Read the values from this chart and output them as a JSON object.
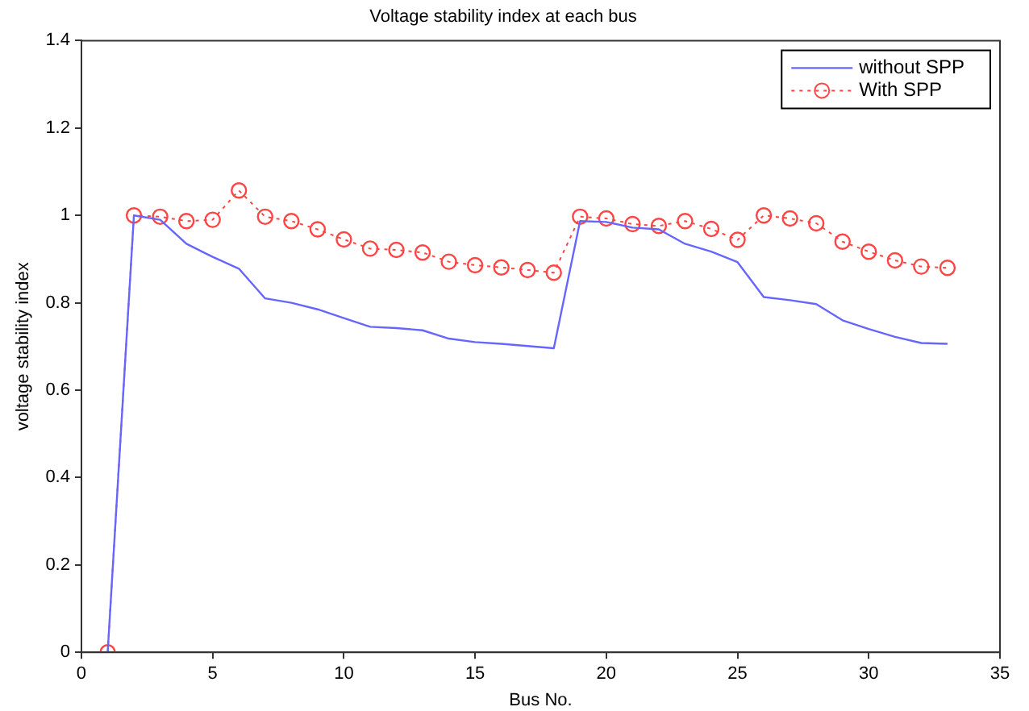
{
  "chart_data": {
    "type": "line",
    "title": "Voltage stability index at each bus",
    "xlabel": "Bus No.",
    "ylabel": "voltage stability index",
    "x": [
      1,
      2,
      3,
      4,
      5,
      6,
      7,
      8,
      9,
      10,
      11,
      12,
      13,
      14,
      15,
      16,
      17,
      18,
      19,
      20,
      21,
      22,
      23,
      24,
      25,
      26,
      27,
      28,
      29,
      30,
      31,
      32,
      33
    ],
    "series": [
      {
        "name": "without SPP",
        "color": "#6666ff",
        "marker": "none",
        "line_style": "solid",
        "values": [
          0,
          1.0,
          0.99,
          0.935,
          0.905,
          0.878,
          0.81,
          0.8,
          0.785,
          0.765,
          0.745,
          0.742,
          0.737,
          0.718,
          0.71,
          0.706,
          0.701,
          0.696,
          0.987,
          0.985,
          0.972,
          0.968,
          0.935,
          0.917,
          0.893,
          0.813,
          0.806,
          0.797,
          0.76,
          0.74,
          0.722,
          0.708,
          0.706
        ]
      },
      {
        "name": "With SPP",
        "color": "#ff4444",
        "marker": "circle",
        "line_style": "dotted",
        "values": [
          0,
          1.0,
          0.997,
          0.987,
          0.99,
          1.057,
          0.997,
          0.987,
          0.968,
          0.945,
          0.924,
          0.921,
          0.915,
          0.894,
          0.886,
          0.881,
          0.875,
          0.869,
          0.997,
          0.993,
          0.98,
          0.976,
          0.987,
          0.969,
          0.944,
          1.0,
          0.993,
          0.982,
          0.94,
          0.917,
          0.897,
          0.883,
          0.88
        ]
      }
    ],
    "xlim": [
      0,
      35
    ],
    "xticks": [
      0,
      5,
      10,
      15,
      20,
      25,
      30,
      35
    ],
    "ylim": [
      0,
      1.4
    ],
    "yticks": [
      0,
      0.2,
      0.4,
      0.6,
      0.8,
      1,
      1.2,
      1.4
    ],
    "grid": false,
    "legend": "top right"
  }
}
